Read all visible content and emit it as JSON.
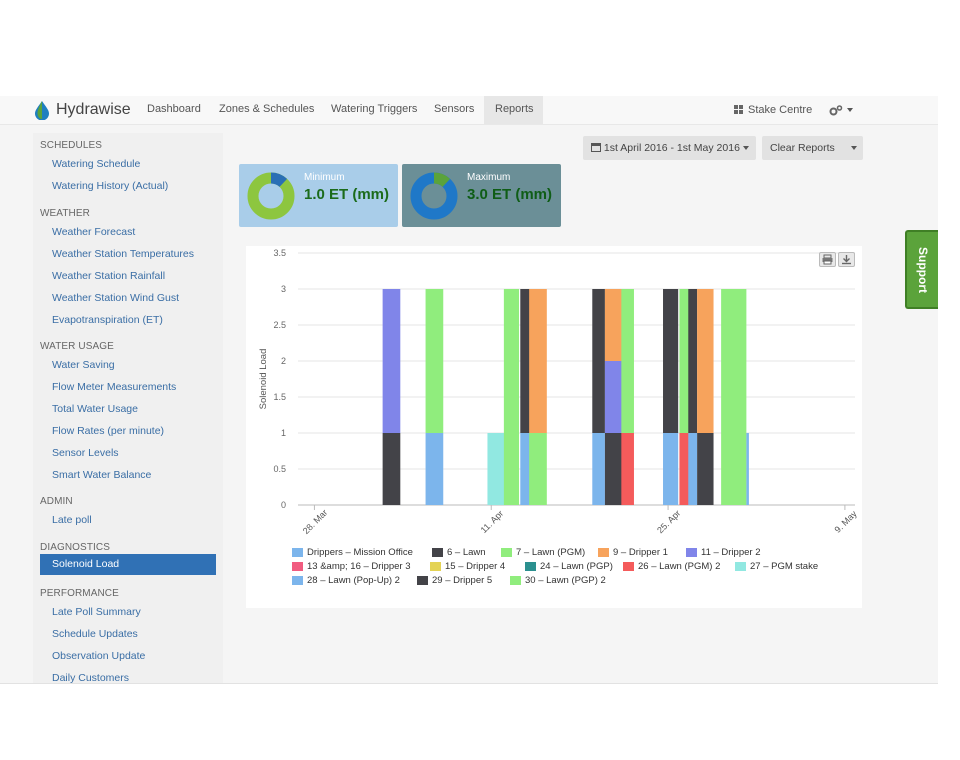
{
  "brand": {
    "name": "Hydrawise"
  },
  "nav": {
    "items": [
      "Dashboard",
      "Zones & Schedules",
      "Watering Triggers",
      "Sensors",
      "Reports"
    ],
    "active": "Reports",
    "stake_centre": "Stake Centre"
  },
  "sidebar": {
    "sections": [
      {
        "heading": "SCHEDULES",
        "links": [
          "Watering Schedule",
          "Watering History (Actual)"
        ]
      },
      {
        "heading": "WEATHER",
        "links": [
          "Weather Forecast",
          "Weather Station Temperatures",
          "Weather Station Rainfall",
          "Weather Station Wind Gust",
          "Evapotranspiration (ET)"
        ]
      },
      {
        "heading": "WATER USAGE",
        "links": [
          "Water Saving",
          "Flow Meter Measurements",
          "Total Water Usage",
          "Flow Rates (per minute)",
          "Sensor Levels",
          "Smart Water Balance"
        ]
      },
      {
        "heading": "ADMIN",
        "links": [
          "Late poll"
        ]
      },
      {
        "heading": "DIAGNOSTICS",
        "links": [
          "Solenoid Load"
        ]
      },
      {
        "heading": "PERFORMANCE",
        "links": [
          "Late Poll Summary",
          "Schedule Updates",
          "Observation Update",
          "Daily Customers"
        ]
      }
    ],
    "active_link": "Solenoid Load"
  },
  "controls": {
    "date_range": "1st April 2016 - 1st May 2016",
    "clear_reports": "Clear Reports"
  },
  "cards": {
    "minimum": {
      "label": "Minimum",
      "value": "1.0 ET (mm)",
      "fraction": 0.12
    },
    "maximum": {
      "label": "Maximum",
      "value": "3.0 ET (mm)",
      "fraction": 0.12
    }
  },
  "colors": {
    "accent": "#3071b5",
    "support": "#5ba33b",
    "min_card": "#a9cde9",
    "max_card": "#6b8f97"
  },
  "support": {
    "label": "Support"
  },
  "chart_data": {
    "type": "bar",
    "stacked": true,
    "ylabel": "Solenoid Load",
    "ylim": [
      0,
      3.5
    ],
    "yticks": [
      "0",
      "0.5",
      "1",
      "1.5",
      "2",
      "2.5",
      "3",
      "3.5"
    ],
    "xticks": [
      {
        "label": "28. Mar",
        "day": 0
      },
      {
        "label": "11. Apr",
        "day": 14
      },
      {
        "label": "25. Apr",
        "day": 28
      },
      {
        "label": "9. May",
        "day": 42
      }
    ],
    "series": [
      {
        "name": "Drippers – Mission Office",
        "color": "#7cb5ec"
      },
      {
        "name": "6 – Lawn",
        "color": "#434348"
      },
      {
        "name": "7 – Lawn (PGM)",
        "color": "#90ed7d"
      },
      {
        "name": "9 – Dripper 1",
        "color": "#f7a35c"
      },
      {
        "name": "11 – Dripper 2",
        "color": "#8085e9"
      },
      {
        "name": "13 &amp; 16 – Dripper 3",
        "color": "#f15c80"
      },
      {
        "name": "15 – Dripper 4",
        "color": "#e4d354"
      },
      {
        "name": "24 – Lawn (PGP)",
        "color": "#2b908f"
      },
      {
        "name": "26 – Lawn (PGM) 2",
        "color": "#f45b5b"
      },
      {
        "name": "27 – PGM stake",
        "color": "#91e8e1"
      },
      {
        "name": "28 – Lawn (Pop-Up) 2",
        "color": "#7cb5ec"
      },
      {
        "name": "29 – Dripper 5",
        "color": "#434348"
      },
      {
        "name": "30 – Lawn (PGP) 2",
        "color": "#90ed7d"
      }
    ],
    "bars": [
      {
        "day": 5.4,
        "width": 1.4,
        "stack": [
          [
            11,
            1
          ],
          [
            4,
            2
          ]
        ]
      },
      {
        "day": 8.8,
        "width": 1.4,
        "stack": [
          [
            0,
            1
          ],
          [
            2,
            2
          ]
        ]
      },
      {
        "day": 13.7,
        "width": 1.4,
        "stack": [
          [
            9,
            1
          ]
        ]
      },
      {
        "day": 15.0,
        "width": 1.2,
        "stack": [
          [
            12,
            1
          ],
          [
            2,
            2
          ]
        ]
      },
      {
        "day": 16.3,
        "width": 0.8,
        "stack": [
          [
            0,
            1
          ],
          [
            1,
            2
          ]
        ]
      },
      {
        "day": 17.0,
        "width": 1.4,
        "stack": [
          [
            12,
            1
          ],
          [
            3,
            2
          ]
        ]
      },
      {
        "day": 22.0,
        "width": 1.0,
        "stack": [
          [
            0,
            1
          ],
          [
            1,
            2
          ]
        ]
      },
      {
        "day": 23.0,
        "width": 1.4,
        "stack": [
          [
            11,
            1
          ],
          [
            4,
            1
          ],
          [
            3,
            1
          ]
        ]
      },
      {
        "day": 24.3,
        "width": 1.0,
        "stack": [
          [
            8,
            1
          ],
          [
            2,
            2
          ]
        ]
      },
      {
        "day": 27.6,
        "width": 1.2,
        "stack": [
          [
            0,
            1
          ],
          [
            1,
            2
          ]
        ]
      },
      {
        "day": 28.9,
        "width": 0.8,
        "stack": [
          [
            8,
            1
          ],
          [
            2,
            2
          ]
        ]
      },
      {
        "day": 29.6,
        "width": 0.7,
        "stack": [
          [
            0,
            1
          ],
          [
            1,
            2
          ]
        ]
      },
      {
        "day": 30.3,
        "width": 1.3,
        "stack": [
          [
            11,
            1
          ],
          [
            3,
            2
          ]
        ]
      },
      {
        "day": 32.2,
        "width": 2.0,
        "stack": [
          [
            12,
            1
          ],
          [
            2,
            2
          ]
        ]
      },
      {
        "day": 34.2,
        "width": 0.2,
        "stack": [
          [
            0,
            1
          ]
        ]
      }
    ]
  }
}
